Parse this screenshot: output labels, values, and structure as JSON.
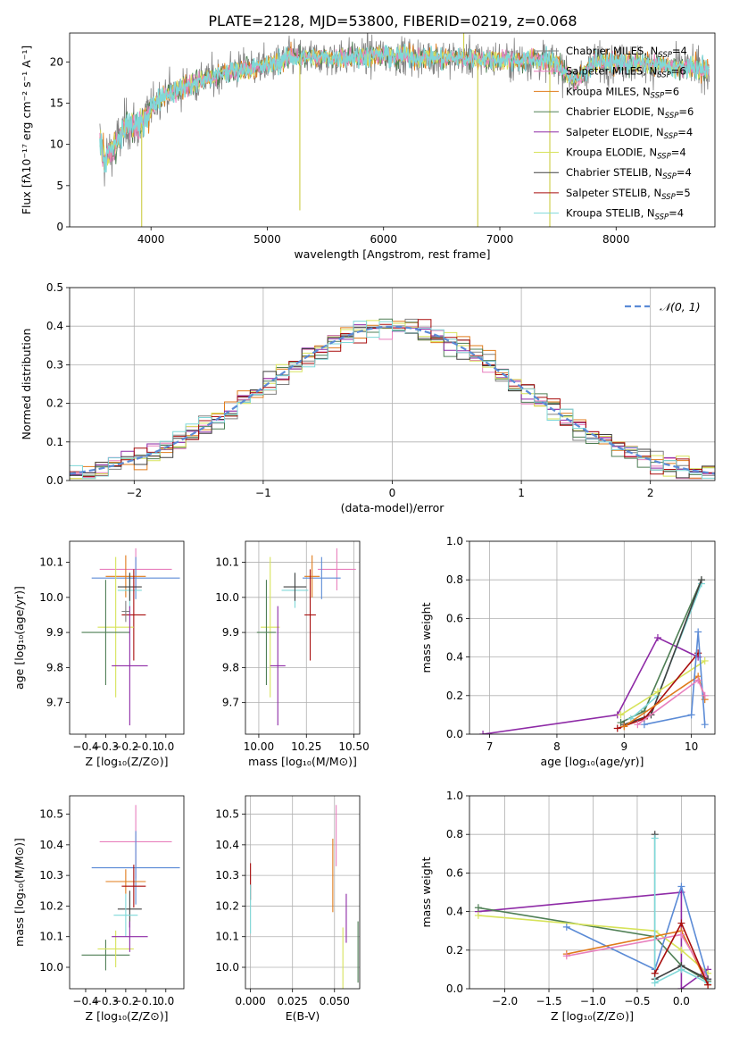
{
  "figure": {
    "title": "PLATE=2128, MJD=53800, FIBERID=0219, z=0.068",
    "colors": {
      "chabrier_miles": "#808080",
      "salpeter_miles": "#e87fbd",
      "kroupa_miles": "#e07b1a",
      "chabrier_elodie": "#4f7f55",
      "salpeter_elodie": "#8e2aa6",
      "kroupa_elodie": "#d7e35a",
      "chabrier_stelib": "#404040",
      "salpeter_stelib": "#a80d0d",
      "kroupa_stelib": "#7fd8d8",
      "normal": "#5b8bd6"
    }
  },
  "chart_data": [
    {
      "id": "spectrum",
      "type": "line",
      "title": "PLATE=2128, MJD=53800, FIBERID=0219, z=0.068",
      "xlabel": "wavelength [Angstrom, rest frame]",
      "ylabel": "Flux [fλ10⁻¹⁷ erg cm⁻² s⁻¹ A⁻¹]",
      "xlim": [
        3300,
        8850
      ],
      "ylim": [
        0,
        23.5
      ],
      "xticks": [
        4000,
        5000,
        6000,
        7000,
        8000
      ],
      "yticks": [
        0,
        5,
        10,
        15,
        20
      ],
      "grid": false,
      "legend_position": "top-right",
      "legend": [
        {
          "label": "Chabrier MILES, N",
          "sub": "SSP",
          "count": "=4",
          "color_key": "chabrier_miles"
        },
        {
          "label": "Salpeter MILES, N",
          "sub": "SSP",
          "count": "=6",
          "color_key": "salpeter_miles"
        },
        {
          "label": "Kroupa MILES, N",
          "sub": "SSP",
          "count": "=6",
          "color_key": "kroupa_miles"
        },
        {
          "label": "Chabrier ELODIE, N",
          "sub": "SSP",
          "count": "=6",
          "color_key": "chabrier_elodie"
        },
        {
          "label": "Salpeter ELODIE, N",
          "sub": "SSP",
          "count": "=4",
          "color_key": "salpeter_elodie"
        },
        {
          "label": "Kroupa ELODIE, N",
          "sub": "SSP",
          "count": "=4",
          "color_key": "kroupa_elodie"
        },
        {
          "label": "Chabrier STELIB, N",
          "sub": "SSP",
          "count": "=4",
          "color_key": "chabrier_stelib"
        },
        {
          "label": "Salpeter STELIB, N",
          "sub": "SSP",
          "count": "=5",
          "color_key": "salpeter_stelib"
        },
        {
          "label": "Kroupa STELIB, N",
          "sub": "SSP",
          "count": "=4",
          "color_key": "kroupa_stelib"
        }
      ],
      "continuum": [
        [
          3550,
          11
        ],
        [
          3600,
          8
        ],
        [
          3700,
          10
        ],
        [
          3800,
          12.5
        ],
        [
          3900,
          12
        ],
        [
          4000,
          14.5
        ],
        [
          4100,
          16
        ],
        [
          4300,
          17
        ],
        [
          4500,
          18
        ],
        [
          4700,
          19
        ],
        [
          5000,
          19.5
        ],
        [
          5200,
          20.5
        ],
        [
          5500,
          20.5
        ],
        [
          6000,
          20.8
        ],
        [
          6500,
          20.5
        ],
        [
          7000,
          20.3
        ],
        [
          7400,
          20.2
        ],
        [
          7500,
          19.8
        ],
        [
          7650,
          17.5
        ],
        [
          7800,
          20
        ],
        [
          8200,
          19.8
        ],
        [
          8500,
          19.3
        ],
        [
          8700,
          19.2
        ],
        [
          8800,
          19
        ]
      ],
      "spikes": [
        [
          3920,
          0
        ],
        [
          6810,
          0
        ],
        [
          7430,
          0
        ],
        [
          6690,
          23.5
        ],
        [
          5280,
          2
        ]
      ]
    },
    {
      "id": "residuals",
      "type": "bar",
      "xlabel": "(data-model)/error",
      "ylabel": "Normed distribution",
      "xlim": [
        -2.5,
        2.5
      ],
      "ylim": [
        0,
        0.5
      ],
      "xticks": [
        -2,
        -1,
        0,
        1,
        2
      ],
      "xticklabels": [
        "−2",
        "−1",
        "0",
        "1",
        "2"
      ],
      "yticks": [
        0.0,
        0.1,
        0.2,
        0.3,
        0.4,
        0.5
      ],
      "yticklabels": [
        "0.0",
        "0.1",
        "0.2",
        "0.3",
        "0.4",
        "0.5"
      ],
      "grid": true,
      "legend_position": "top-right",
      "normal_label": "𝒩(0, 1)",
      "bin_width": 0.1
    },
    {
      "id": "age_vs_Z",
      "type": "scatter",
      "xlabel": "Z [log₁₀(Z/Z⊙)]",
      "ylabel": "age  [log₁₀(age/yr)]",
      "xlim": [
        -0.48,
        0.09
      ],
      "ylim": [
        9.61,
        10.16
      ],
      "xticks": [
        -0.4,
        -0.3,
        -0.2,
        -0.1,
        0.0
      ],
      "xticklabels": [
        "−0.4",
        "−0.3",
        "−0.2",
        "−0.1",
        "0.0"
      ],
      "yticks": [
        9.7,
        9.8,
        9.9,
        10.0,
        10.1
      ],
      "yticklabels": [
        "9.7",
        "9.8",
        "9.9",
        "10.0",
        "10.1"
      ],
      "grid": false,
      "points": [
        {
          "color_key": "salpeter_miles",
          "x": -0.15,
          "y": 10.08,
          "xerr": 0.18,
          "yerr": 0.06
        },
        {
          "color_key": "normal",
          "x": -0.15,
          "y": 10.055,
          "xerr": 0.22,
          "yerr": 0.06
        },
        {
          "color_key": "kroupa_miles",
          "x": -0.2,
          "y": 10.06,
          "xerr": 0.1,
          "yerr": 0.06
        },
        {
          "color_key": "kroupa_stelib",
          "x": -0.18,
          "y": 10.02,
          "xerr": 0.06,
          "yerr": 0.05
        },
        {
          "color_key": "chabrier_stelib",
          "x": -0.18,
          "y": 10.03,
          "xerr": 0.06,
          "yerr": 0.04
        },
        {
          "color_key": "salpeter_stelib",
          "x": -0.16,
          "y": 9.95,
          "xerr": 0.06,
          "yerr": 0.13
        },
        {
          "color_key": "kroupa_elodie",
          "x": -0.25,
          "y": 9.915,
          "xerr": 0.09,
          "yerr": 0.2
        },
        {
          "color_key": "chabrier_elodie",
          "x": -0.3,
          "y": 9.9,
          "xerr": 0.12,
          "yerr": 0.15
        },
        {
          "color_key": "salpeter_elodie",
          "x": -0.18,
          "y": 9.805,
          "xerr": 0.09,
          "yerr": 0.17
        },
        {
          "color_key": "chabrier_miles",
          "x": -0.2,
          "y": 9.96,
          "xerr": 0.02,
          "yerr": 0.03
        }
      ]
    },
    {
      "id": "age_vs_mass",
      "type": "scatter",
      "xlabel": "mass [log₁₀(M/M⊙)]",
      "ylabel": "",
      "xlim": [
        9.93,
        10.53
      ],
      "ylim": [
        9.61,
        10.16
      ],
      "xticks": [
        10.0,
        10.25,
        10.5
      ],
      "xticklabels": [
        "10.00",
        "10.25",
        "10.50"
      ],
      "yticks": [
        9.7,
        9.8,
        9.9,
        10.0,
        10.1
      ],
      "yticklabels": [
        "9.7",
        "9.8",
        "9.9",
        "10.0",
        "10.1"
      ],
      "grid": true,
      "points": [
        {
          "color_key": "salpeter_miles",
          "x": 10.41,
          "y": 10.08,
          "xerr": 0.1,
          "yerr": 0.06
        },
        {
          "color_key": "normal",
          "x": 10.33,
          "y": 10.055,
          "xerr": 0.1,
          "yerr": 0.06
        },
        {
          "color_key": "kroupa_miles",
          "x": 10.28,
          "y": 10.06,
          "xerr": 0.04,
          "yerr": 0.06
        },
        {
          "color_key": "kroupa_stelib",
          "x": 10.19,
          "y": 10.02,
          "xerr": 0.07,
          "yerr": 0.05
        },
        {
          "color_key": "chabrier_stelib",
          "x": 10.19,
          "y": 10.03,
          "xerr": 0.06,
          "yerr": 0.04
        },
        {
          "color_key": "salpeter_stelib",
          "x": 10.27,
          "y": 9.95,
          "xerr": 0.03,
          "yerr": 0.13
        },
        {
          "color_key": "kroupa_elodie",
          "x": 10.06,
          "y": 9.915,
          "xerr": 0.05,
          "yerr": 0.2
        },
        {
          "color_key": "chabrier_elodie",
          "x": 10.04,
          "y": 9.9,
          "xerr": 0.05,
          "yerr": 0.15
        },
        {
          "color_key": "salpeter_elodie",
          "x": 10.1,
          "y": 9.805,
          "xerr": 0.04,
          "yerr": 0.17
        }
      ]
    },
    {
      "id": "weight_vs_age",
      "type": "line",
      "xlabel": "age  [log₁₀(age/yr)]",
      "ylabel": "mass weight",
      "xlim": [
        6.7,
        10.35
      ],
      "ylim": [
        0,
        1.0
      ],
      "xticks": [
        7,
        8,
        9,
        10
      ],
      "xticklabels": [
        "7",
        "8",
        "9",
        "10"
      ],
      "yticks": [
        0.0,
        0.2,
        0.4,
        0.6,
        0.8,
        1.0
      ],
      "yticklabels": [
        "0.0",
        "0.2",
        "0.4",
        "0.6",
        "0.8",
        "1.0"
      ],
      "grid": true,
      "series": [
        {
          "color_key": "salpeter_elodie",
          "points": [
            [
              6.9,
              0.0
            ],
            [
              8.9,
              0.1
            ],
            [
              9.5,
              0.5
            ],
            [
              10.1,
              0.4
            ]
          ]
        },
        {
          "color_key": "chabrier_elodie",
          "points": [
            [
              8.95,
              0.06
            ],
            [
              9.3,
              0.12
            ],
            [
              10.15,
              0.8
            ]
          ]
        },
        {
          "color_key": "kroupa_stelib",
          "points": [
            [
              9.1,
              0.08
            ],
            [
              9.5,
              0.2
            ],
            [
              10.15,
              0.78
            ]
          ]
        },
        {
          "color_key": "chabrier_stelib",
          "points": [
            [
              9.0,
              0.05
            ],
            [
              9.4,
              0.1
            ],
            [
              10.15,
              0.8
            ]
          ]
        },
        {
          "color_key": "kroupa_elodie",
          "points": [
            [
              8.95,
              0.1
            ],
            [
              9.5,
              0.22
            ],
            [
              10.2,
              0.38
            ]
          ]
        },
        {
          "color_key": "salpeter_stelib",
          "points": [
            [
              8.9,
              0.03
            ],
            [
              9.3,
              0.08
            ],
            [
              10.1,
              0.42
            ]
          ]
        },
        {
          "color_key": "kroupa_miles",
          "points": [
            [
              9.0,
              0.04
            ],
            [
              10.1,
              0.3
            ],
            [
              10.2,
              0.18
            ]
          ]
        },
        {
          "color_key": "normal",
          "points": [
            [
              9.3,
              0.05
            ],
            [
              10.0,
              0.1
            ],
            [
              10.1,
              0.53
            ],
            [
              10.2,
              0.05
            ]
          ]
        },
        {
          "color_key": "salpeter_miles",
          "points": [
            [
              9.2,
              0.05
            ],
            [
              10.1,
              0.28
            ],
            [
              10.2,
              0.2
            ]
          ]
        }
      ]
    },
    {
      "id": "mass_vs_Z",
      "type": "scatter",
      "xlabel": "Z [log₁₀(Z/Z⊙)]",
      "ylabel": "mass [log₁₀(M/M⊙)]",
      "xlim": [
        -0.48,
        0.09
      ],
      "ylim": [
        9.93,
        10.56
      ],
      "xticks": [
        -0.4,
        -0.3,
        -0.2,
        -0.1,
        0.0
      ],
      "xticklabels": [
        "−0.4",
        "−0.3",
        "−0.2",
        "−0.1",
        "0.0"
      ],
      "yticks": [
        10.0,
        10.1,
        10.2,
        10.3,
        10.4,
        10.5
      ],
      "yticklabels": [
        "10.0",
        "10.1",
        "10.2",
        "10.3",
        "10.4",
        "10.5"
      ],
      "grid": false,
      "points": [
        {
          "color_key": "salpeter_miles",
          "x": -0.15,
          "y": 10.41,
          "xerr": 0.18,
          "yerr": 0.12
        },
        {
          "color_key": "normal",
          "x": -0.15,
          "y": 10.325,
          "xerr": 0.22,
          "yerr": 0.12
        },
        {
          "color_key": "kroupa_miles",
          "x": -0.2,
          "y": 10.28,
          "xerr": 0.1,
          "yerr": 0.04
        },
        {
          "color_key": "salpeter_stelib",
          "x": -0.16,
          "y": 10.265,
          "xerr": 0.06,
          "yerr": 0.07
        },
        {
          "color_key": "chabrier_stelib",
          "x": -0.18,
          "y": 10.19,
          "xerr": 0.06,
          "yerr": 0.06
        },
        {
          "color_key": "kroupa_stelib",
          "x": -0.2,
          "y": 10.17,
          "xerr": 0.06,
          "yerr": 0.07
        },
        {
          "color_key": "chabrier_elodie",
          "x": -0.3,
          "y": 10.04,
          "xerr": 0.12,
          "yerr": 0.05
        },
        {
          "color_key": "kroupa_elodie",
          "x": -0.25,
          "y": 10.06,
          "xerr": 0.09,
          "yerr": 0.06
        },
        {
          "color_key": "salpeter_elodie",
          "x": -0.18,
          "y": 10.1,
          "xerr": 0.09,
          "yerr": 0.05
        }
      ]
    },
    {
      "id": "mass_vs_EBV",
      "type": "scatter",
      "xlabel": "E(B-V)",
      "ylabel": "",
      "xlim": [
        -0.003,
        0.065
      ],
      "ylim": [
        9.93,
        10.56
      ],
      "xticks": [
        0.0,
        0.025,
        0.05
      ],
      "xticklabels": [
        "0.000",
        "0.025",
        "0.050"
      ],
      "yticks": [
        10.0,
        10.1,
        10.2,
        10.3,
        10.4,
        10.5
      ],
      "yticklabels": [
        "10.0",
        "10.1",
        "10.2",
        "10.3",
        "10.4",
        "10.5"
      ],
      "grid": true,
      "points": [
        {
          "color_key": "salpeter_stelib",
          "x": 0.0,
          "y": 10.28,
          "xerr": 0,
          "yerr": 0.06
        },
        {
          "color_key": "kroupa_stelib",
          "x": 0.0,
          "y": 10.19,
          "xerr": 0,
          "yerr": 0.08
        },
        {
          "color_key": "kroupa_miles",
          "x": 0.049,
          "y": 10.3,
          "xerr": 0,
          "yerr": 0.12
        },
        {
          "color_key": "salpeter_miles",
          "x": 0.051,
          "y": 10.43,
          "xerr": 0,
          "yerr": 0.1
        },
        {
          "color_key": "salpeter_elodie",
          "x": 0.057,
          "y": 10.16,
          "xerr": 0,
          "yerr": 0.08
        },
        {
          "color_key": "kroupa_elodie",
          "x": 0.055,
          "y": 10.03,
          "xerr": 0,
          "yerr": 0.1
        },
        {
          "color_key": "chabrier_elodie",
          "x": 0.064,
          "y": 10.05,
          "xerr": 0,
          "yerr": 0.1
        }
      ]
    },
    {
      "id": "weight_vs_Z",
      "type": "line",
      "xlabel": "Z [log₁₀(Z/Z⊙)]",
      "ylabel": "mass weight",
      "xlim": [
        -2.4,
        0.38
      ],
      "ylim": [
        0,
        1.0
      ],
      "xticks": [
        -2.0,
        -1.5,
        -1.0,
        -0.5,
        0.0
      ],
      "xticklabels": [
        "−2.0",
        "−1.5",
        "−1.0",
        "−0.5",
        "0.0"
      ],
      "yticks": [
        0.0,
        0.2,
        0.4,
        0.6,
        0.8,
        1.0
      ],
      "yticklabels": [
        "0.0",
        "0.2",
        "0.4",
        "0.6",
        "0.8",
        "1.0"
      ],
      "grid": true,
      "series": [
        {
          "color_key": "salpeter_elodie",
          "points": [
            [
              -2.3,
              0.4
            ],
            [
              0.0,
              0.5
            ],
            [
              0.0,
              0.0
            ],
            [
              0.3,
              0.1
            ]
          ]
        },
        {
          "color_key": "chabrier_elodie",
          "points": [
            [
              -2.3,
              0.42
            ],
            [
              -0.3,
              0.27
            ],
            [
              0.0,
              0.12
            ],
            [
              0.3,
              0.04
            ]
          ]
        },
        {
          "color_key": "kroupa_elodie",
          "points": [
            [
              -2.3,
              0.38
            ],
            [
              -0.3,
              0.3
            ],
            [
              0.0,
              0.2
            ],
            [
              0.3,
              0.08
            ]
          ]
        },
        {
          "color_key": "normal",
          "points": [
            [
              -1.3,
              0.32
            ],
            [
              -0.3,
              0.1
            ],
            [
              0.0,
              0.53
            ],
            [
              0.3,
              0.05
            ]
          ]
        },
        {
          "color_key": "kroupa_miles",
          "points": [
            [
              -1.3,
              0.18
            ],
            [
              0.0,
              0.3
            ],
            [
              0.3,
              0.02
            ]
          ]
        },
        {
          "color_key": "salpeter_miles",
          "points": [
            [
              -1.3,
              0.17
            ],
            [
              0.0,
              0.28
            ],
            [
              0.3,
              0.05
            ]
          ]
        },
        {
          "color_key": "chabrier_stelib",
          "points": [
            [
              -0.3,
              0.8
            ],
            [
              -0.3,
              0.05
            ],
            [
              0.0,
              0.12
            ],
            [
              0.3,
              0.05
            ]
          ]
        },
        {
          "color_key": "kroupa_stelib",
          "points": [
            [
              -0.3,
              0.78
            ],
            [
              -0.3,
              0.03
            ],
            [
              0.0,
              0.1
            ],
            [
              0.3,
              0.03
            ]
          ]
        },
        {
          "color_key": "salpeter_stelib",
          "points": [
            [
              -0.3,
              0.08
            ],
            [
              0.0,
              0.34
            ],
            [
              0.3,
              0.02
            ]
          ]
        }
      ]
    }
  ]
}
